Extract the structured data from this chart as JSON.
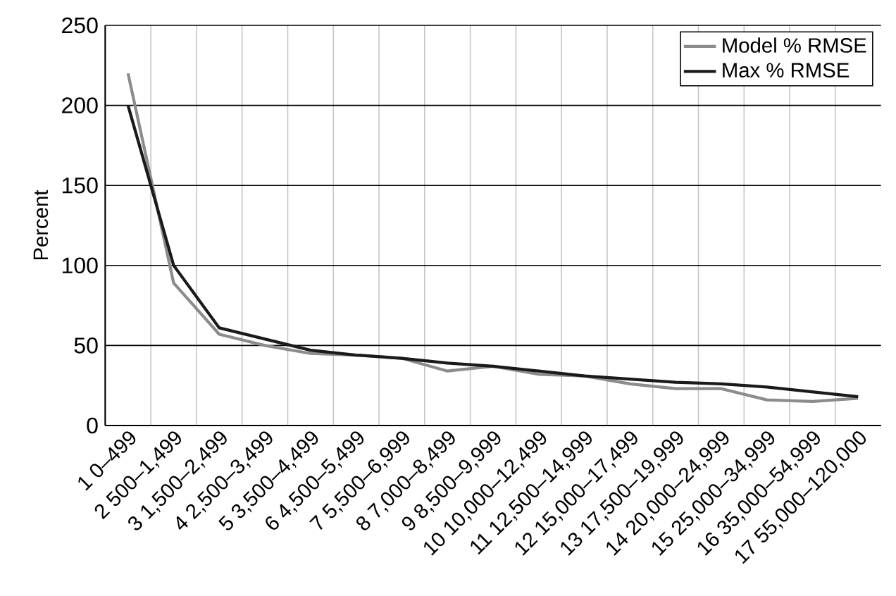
{
  "chart_data": {
    "type": "line",
    "ylabel": "Percent",
    "categories": [
      "1 0–499",
      "2 500–1,499",
      "3 1,500–2,499",
      "4 2,500–3,499",
      "5 3,500–4,499",
      "6 4,500–5,499",
      "7 5,500–6,999",
      "8 7,000–8,499",
      "9 8,500–9,999",
      "10 10,000–12,499",
      "11 12,500–14,999",
      "12 15,000–17,499",
      "13 17,500–19,999",
      "14 20,000–24,999",
      "15 25,000–34,999",
      "16 35,000–54,999",
      "17 55,000–120,000"
    ],
    "series": [
      {
        "name": "Model % RMSE",
        "color": "#8c8c8c",
        "values": [
          220,
          89,
          57,
          50,
          45,
          44,
          42,
          34,
          37,
          32,
          31,
          26,
          23,
          23,
          16,
          15,
          17
        ]
      },
      {
        "name": "Max % RMSE",
        "color": "#1a1a1a",
        "values": [
          200,
          100,
          61,
          54,
          47,
          44,
          42,
          39,
          37,
          34,
          31,
          29,
          27,
          26,
          24,
          21,
          18
        ]
      }
    ],
    "ylim": [
      0,
      250
    ],
    "yticks": [
      0,
      50,
      100,
      150,
      200,
      250
    ],
    "grid": true,
    "legend": "top right",
    "marker": "none",
    "line_style": "solid"
  }
}
